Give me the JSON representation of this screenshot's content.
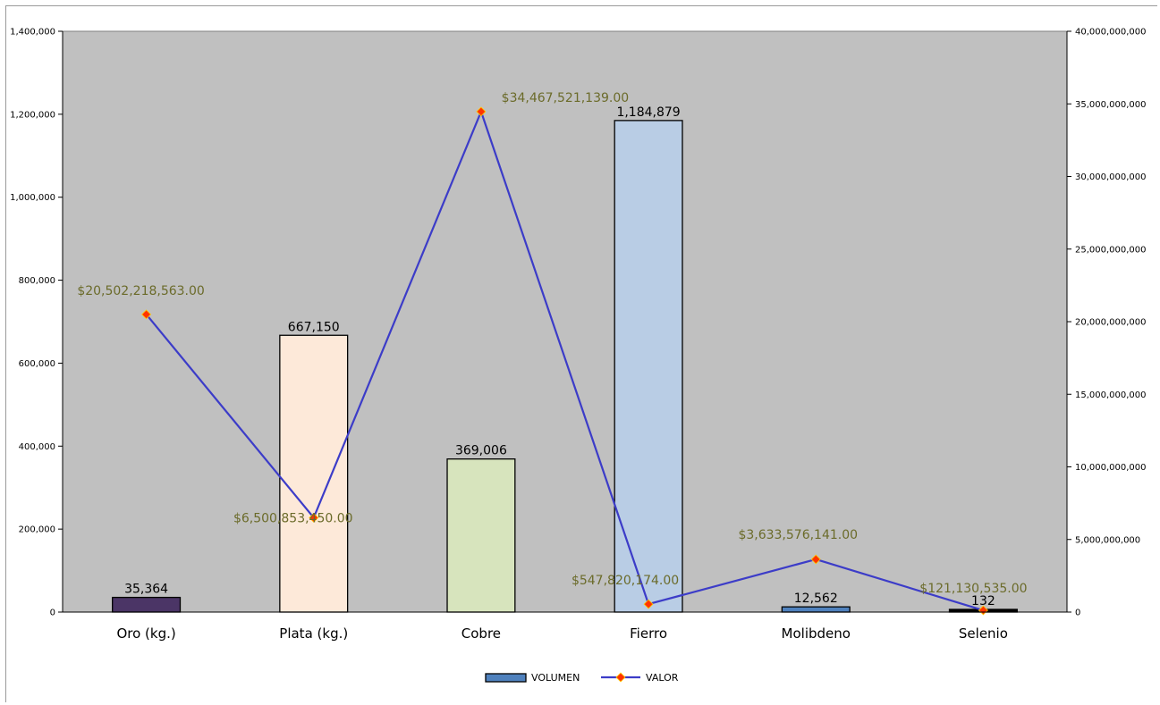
{
  "chart_data": {
    "type": "bar",
    "categories": [
      "Oro (kg.)",
      "Plata (kg.)",
      "Cobre",
      "Fierro",
      "Molibdeno",
      "Selenio"
    ],
    "series": [
      {
        "name": "VOLUMEN",
        "kind": "bar",
        "axis": "left",
        "values": [
          35364,
          667150,
          369006,
          1184879,
          12562,
          132
        ],
        "labels": [
          "35,364",
          "667,150",
          "369,006",
          "1,184,879",
          "12,562",
          "132"
        ],
        "colors": [
          "#4b3566",
          "#fde9d9",
          "#d7e4bd",
          "#b9cde5",
          "#4f81bd",
          "#000000"
        ]
      },
      {
        "name": "VALOR",
        "kind": "line",
        "axis": "right",
        "values": [
          20502218563,
          6500853450,
          34467521139,
          547820174,
          3633576141,
          121130535
        ],
        "labels": [
          "$20,502,218,563.00",
          "$6,500,853,450.00",
          "$34,467,521,139.00",
          "$547,820,174.00",
          "$3,633,576,141.00",
          "$121,130,535.00"
        ],
        "line_color": "#3c3cc8",
        "marker_color": "#ff3300"
      }
    ],
    "y_left": {
      "range": [
        0,
        1400000
      ],
      "ticks": [
        0,
        200000,
        400000,
        600000,
        800000,
        1000000,
        1200000,
        1400000
      ],
      "tick_labels": [
        "0",
        "200,000",
        "400,000",
        "600,000",
        "800,000",
        "1,000,000",
        "1,200,000",
        "1,400,000"
      ]
    },
    "y_right": {
      "range": [
        0,
        40000000000
      ],
      "ticks": [
        0,
        5000000000,
        10000000000,
        15000000000,
        20000000000,
        25000000000,
        30000000000,
        35000000000,
        40000000000
      ],
      "tick_labels": [
        "0",
        "5,000,000,000",
        "10,000,000,000",
        "15,000,000,000",
        "20,000,000,000",
        "25,000,000,000",
        "30,000,000,000",
        "35,000,000,000",
        "40,000,000,000"
      ]
    },
    "grid": false,
    "plot_background": "#c0c0c0",
    "legend": {
      "position": "bottom",
      "entries": [
        "VOLUMEN",
        "VALOR"
      ]
    }
  }
}
